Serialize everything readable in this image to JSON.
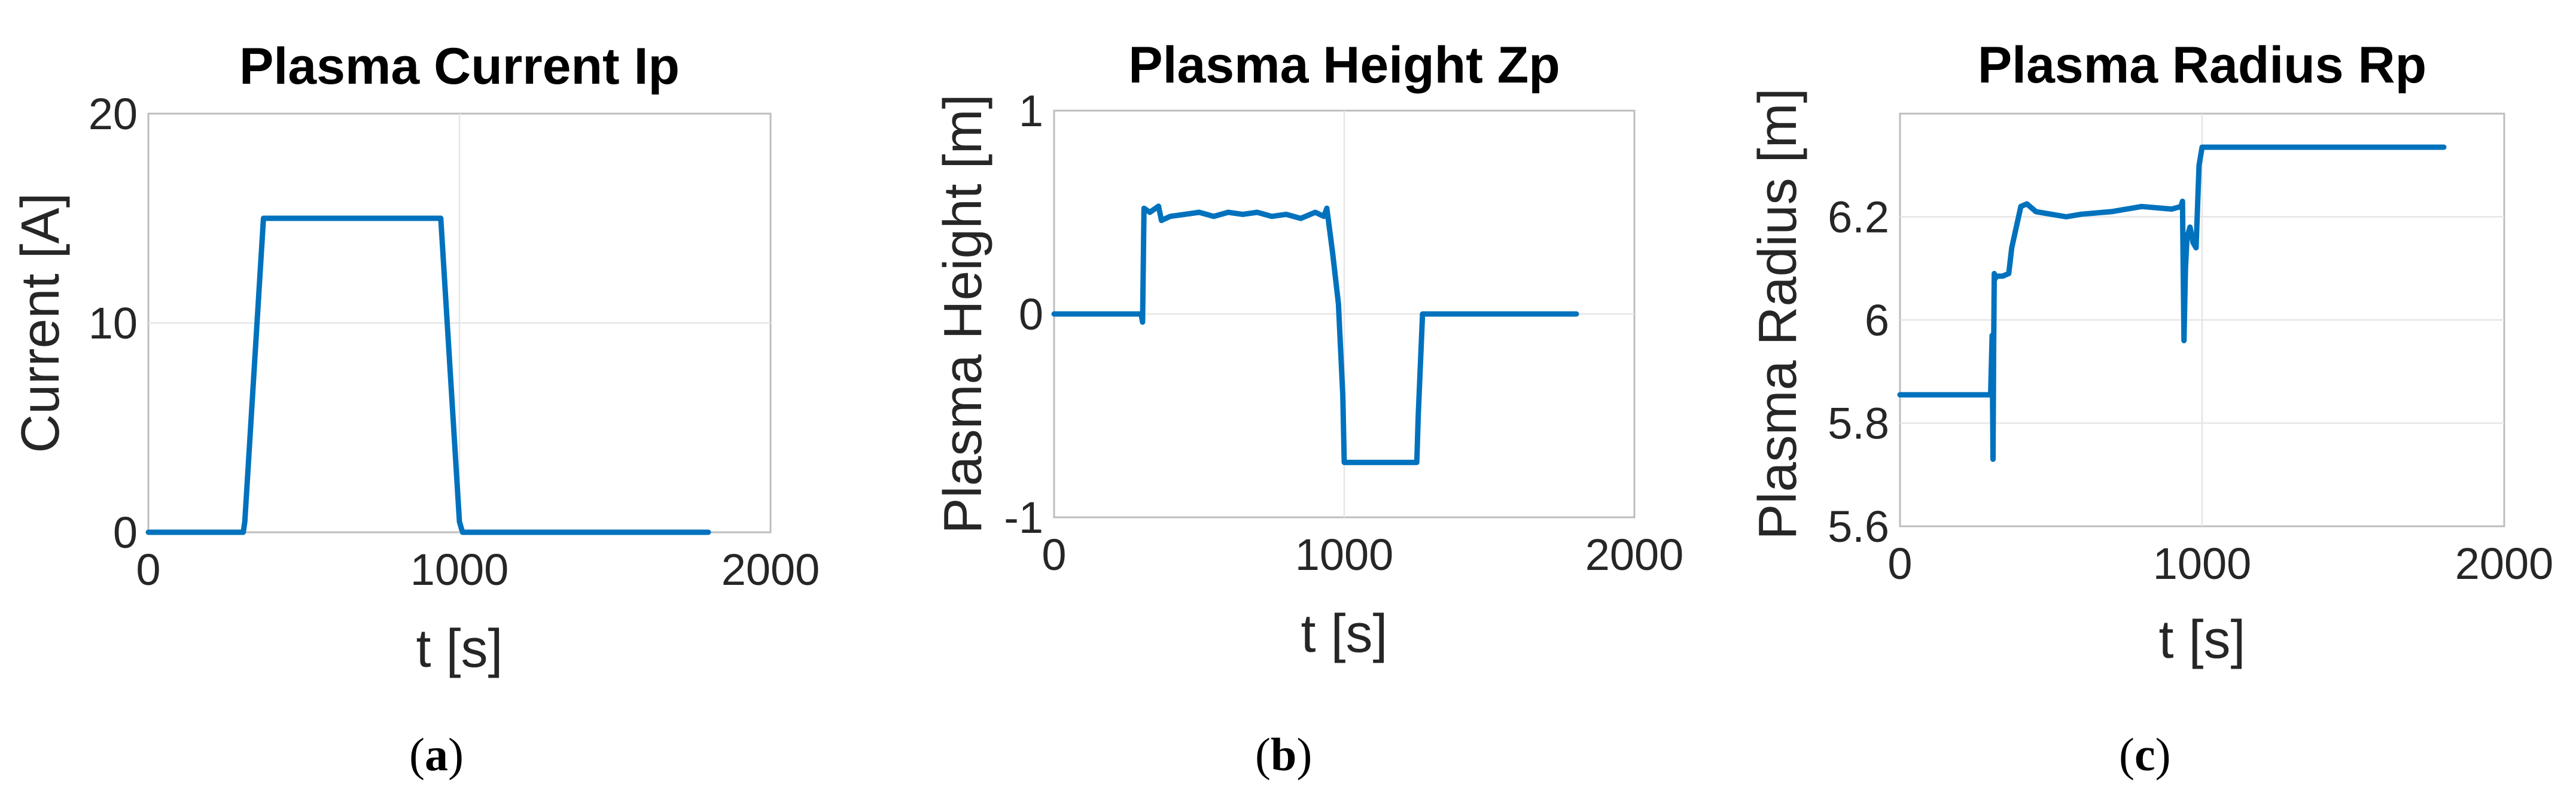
{
  "chart_data": [
    {
      "type": "line",
      "title": "Plasma Current Ip",
      "xlabel": "t [s]",
      "ylabel": "Current [A]",
      "xlim": [
        0,
        2000
      ],
      "ylim": [
        0,
        20
      ],
      "xticks": [
        0,
        1000,
        2000
      ],
      "yticks": [
        0,
        10,
        20
      ],
      "xtick_labels": [
        "0",
        "1000",
        "2000"
      ],
      "ytick_labels": [
        "0",
        "10",
        "20"
      ],
      "grid": true,
      "caption": "a",
      "line_color": "#0072BD",
      "series": [
        {
          "x": [
            0,
            305,
            310,
            370,
            940,
            1000,
            1010,
            1800
          ],
          "y": [
            0,
            0,
            0.5,
            15,
            15,
            0.5,
            0,
            0
          ]
        }
      ]
    },
    {
      "type": "line",
      "title": "Plasma Height Zp",
      "xlabel": "t [s]",
      "ylabel": "Plasma Height  [m]",
      "xlim": [
        0,
        2000
      ],
      "ylim": [
        -1,
        1
      ],
      "xticks": [
        0,
        1000,
        2000
      ],
      "yticks": [
        -1,
        0,
        1
      ],
      "xtick_labels": [
        "0",
        "1000",
        "2000"
      ],
      "ytick_labels": [
        "-1",
        "0",
        "1"
      ],
      "grid": true,
      "caption": "b",
      "line_color": "#0072BD",
      "series": [
        {
          "x": [
            0,
            300,
            305,
            310,
            330,
            360,
            370,
            400,
            450,
            500,
            550,
            600,
            650,
            700,
            750,
            800,
            850,
            900,
            930,
            940,
            960,
            980,
            995,
            1000,
            1100,
            1200,
            1250,
            1255,
            1270,
            1300,
            1800
          ],
          "y": [
            0,
            0,
            -0.04,
            0.52,
            0.5,
            0.53,
            0.46,
            0.48,
            0.49,
            0.5,
            0.48,
            0.5,
            0.49,
            0.5,
            0.48,
            0.49,
            0.47,
            0.5,
            0.48,
            0.52,
            0.3,
            0.05,
            -0.4,
            -0.73,
            -0.73,
            -0.73,
            -0.73,
            -0.5,
            0,
            0,
            0
          ]
        }
      ]
    },
    {
      "type": "line",
      "title": "Plasma Radius Rp",
      "xlabel": "t [s]",
      "ylabel": "Plasma Radius [m]",
      "xlim": [
        0,
        2000
      ],
      "ylim": [
        5.6,
        6.4
      ],
      "xticks": [
        0,
        1000,
        2000
      ],
      "yticks": [
        5.6,
        5.8,
        6.0,
        6.2
      ],
      "xtick_labels": [
        "0",
        "1000",
        "2000"
      ],
      "ytick_labels": [
        "5.6",
        "5.8",
        "6",
        "6.2"
      ],
      "grid": true,
      "caption": "c",
      "line_color": "#0072BD",
      "series": [
        {
          "x": [
            0,
            300,
            305,
            308,
            310,
            312,
            315,
            320,
            340,
            360,
            370,
            400,
            420,
            450,
            500,
            550,
            600,
            700,
            800,
            900,
            930,
            935,
            940,
            945,
            950,
            960,
            970,
            980,
            990,
            1000,
            1010,
            1800
          ],
          "y": [
            5.855,
            5.855,
            5.97,
            5.73,
            5.95,
            6.09,
            6.08,
            6.085,
            6.085,
            6.09,
            6.14,
            6.22,
            6.225,
            6.21,
            6.205,
            6.2,
            6.205,
            6.21,
            6.22,
            6.215,
            6.22,
            6.23,
            5.96,
            6.1,
            6.16,
            6.18,
            6.15,
            6.14,
            6.3,
            6.335,
            6.335,
            6.335
          ]
        }
      ]
    }
  ]
}
